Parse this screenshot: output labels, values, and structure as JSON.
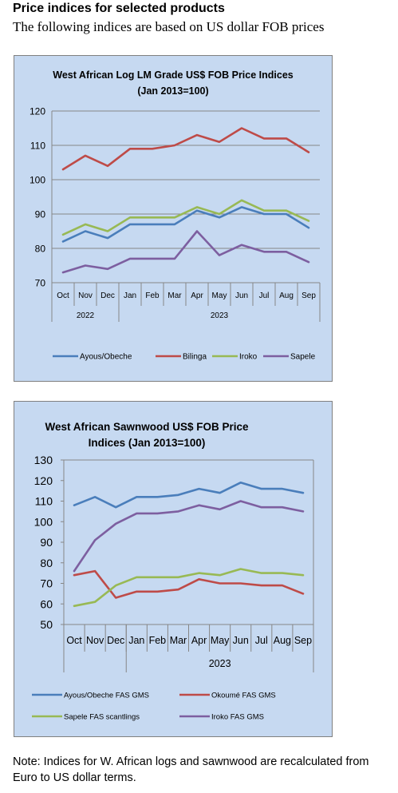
{
  "header": {
    "title": "Price indices for selected products",
    "subtitle": "The following indices are based on US dollar FOB prices"
  },
  "note": "Note: Indices for W. African logs and sawnwood are recalculated from Euro to US dollar terms.",
  "chart_data": [
    {
      "type": "line",
      "title_lines": [
        "West African Log LM Grade US$ FOB Price Indices",
        "(Jan 2013=100)"
      ],
      "categories": [
        "Oct",
        "Nov",
        "Dec",
        "Jan",
        "Feb",
        "Mar",
        "Apr",
        "May",
        "Jun",
        "Jul",
        "Aug",
        "Sep"
      ],
      "year_groups": [
        {
          "label": "2022",
          "start": 0,
          "end": 2
        },
        {
          "label": "2023",
          "start": 3,
          "end": 11
        }
      ],
      "ylim": [
        70,
        120
      ],
      "yticks": [
        70,
        80,
        90,
        100,
        110,
        120
      ],
      "grid": true,
      "legend_position": "bottom",
      "series": [
        {
          "name": "Ayous/Obeche",
          "color": "#4a7ebb",
          "values": [
            82,
            85,
            83,
            87,
            87,
            87,
            91,
            89,
            92,
            90,
            90,
            86
          ]
        },
        {
          "name": "Bilinga",
          "color": "#be4b48",
          "values": [
            103,
            107,
            104,
            109,
            109,
            110,
            113,
            111,
            115,
            112,
            112,
            108
          ]
        },
        {
          "name": "Iroko",
          "color": "#98b954",
          "values": [
            84,
            87,
            85,
            89,
            89,
            89,
            92,
            90,
            94,
            91,
            91,
            88
          ]
        },
        {
          "name": "Sapele",
          "color": "#7d5fa0",
          "values": [
            73,
            75,
            74,
            77,
            77,
            77,
            85,
            78,
            81,
            79,
            79,
            76
          ]
        }
      ]
    },
    {
      "type": "line",
      "title_lines": [
        "West African Sawnwood US$ FOB Price",
        "Indices (Jan 2013=100)"
      ],
      "categories": [
        "Oct",
        "Nov",
        "Dec",
        "Jan",
        "Feb",
        "Mar",
        "Apr",
        "May",
        "Jun",
        "Jul",
        "Aug",
        "Sep"
      ],
      "year_groups": [
        {
          "label": "",
          "start": 0,
          "end": 2
        },
        {
          "label": "2023",
          "start": 3,
          "end": 11
        }
      ],
      "ylim": [
        50,
        130
      ],
      "yticks": [
        50,
        60,
        70,
        80,
        90,
        100,
        110,
        120,
        130
      ],
      "grid": false,
      "legend_position": "bottom",
      "series": [
        {
          "name": "Ayous/Obeche  FAS GMS",
          "color": "#4a7ebb",
          "values": [
            108,
            112,
            107,
            112,
            112,
            113,
            116,
            114,
            119,
            116,
            116,
            114
          ]
        },
        {
          "name": "Okoumé  FAS GMS",
          "color": "#be4b48",
          "values": [
            74,
            76,
            63,
            66,
            66,
            67,
            72,
            70,
            70,
            69,
            69,
            65
          ]
        },
        {
          "name": "Sapele FAS scantlings",
          "color": "#98b954",
          "values": [
            59,
            61,
            69,
            73,
            73,
            73,
            75,
            74,
            77,
            75,
            75,
            74
          ]
        },
        {
          "name": "Iroko FAS GMS",
          "color": "#7d5fa0",
          "values": [
            76,
            91,
            99,
            104,
            104,
            105,
            108,
            106,
            110,
            107,
            107,
            105
          ]
        }
      ]
    }
  ]
}
